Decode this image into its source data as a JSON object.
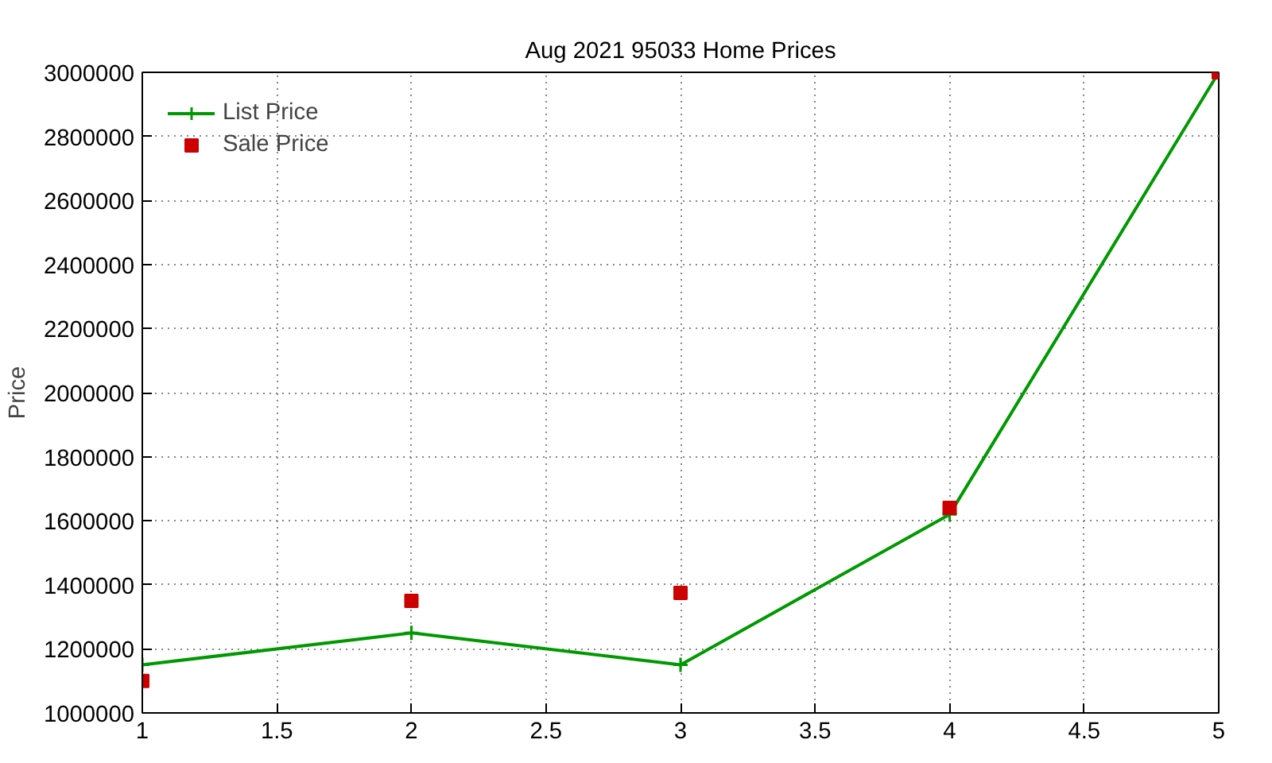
{
  "chart_data": {
    "type": "line",
    "title": "Aug 2021 95033 Home Prices",
    "ylabel": "Price",
    "x": [
      1,
      2,
      3,
      4,
      5
    ],
    "series": [
      {
        "name": "List Price",
        "color": "#009900",
        "marker": "cross",
        "values": [
          1150000,
          1250000,
          1150000,
          1620000,
          3000000
        ]
      },
      {
        "name": "Sale Price",
        "type": "scatter",
        "color": "#cc0000",
        "marker": "square",
        "values": [
          1100000,
          1350000,
          1375000,
          1640000,
          3000000
        ]
      }
    ],
    "xlim": [
      1,
      5
    ],
    "xticks": [
      1,
      1.5,
      2,
      2.5,
      3,
      3.5,
      4,
      4.5,
      5
    ],
    "ylim": [
      1000000,
      3000000
    ],
    "yticks": [
      1000000,
      1200000,
      1400000,
      1600000,
      1800000,
      2000000,
      2200000,
      2400000,
      2600000,
      2800000,
      3000000
    ],
    "grid": true,
    "legend": "top left"
  }
}
